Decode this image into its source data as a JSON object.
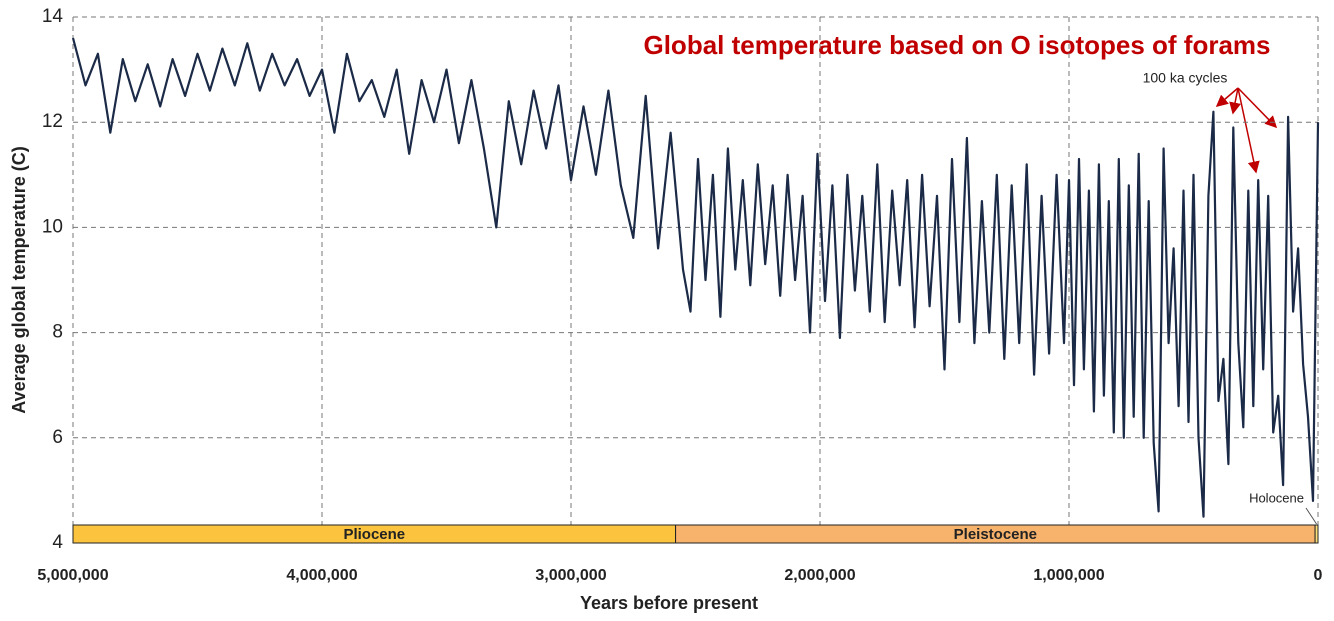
{
  "chart_data": {
    "type": "line",
    "title": "Global temperature based on O isotopes of forams",
    "x_label": "Years before present",
    "y_label": "Average global temperature (C)",
    "annotation": "100 ka cycles",
    "xlim": [
      5000000,
      0
    ],
    "ylim": [
      4,
      14
    ],
    "xticks": [
      {
        "value": 5000000,
        "label": "5,000,000"
      },
      {
        "value": 4000000,
        "label": "4,000,000"
      },
      {
        "value": 3000000,
        "label": "3,000,000"
      },
      {
        "value": 2000000,
        "label": "2,000,000"
      },
      {
        "value": 1000000,
        "label": "1,000,000"
      },
      0
    ],
    "yticks": [
      4,
      6,
      8,
      10,
      12,
      14
    ],
    "grid": true,
    "epochs": [
      {
        "name": "Pliocene",
        "start": 5000000,
        "end": 2580000,
        "color": "#fcc43e"
      },
      {
        "name": "Pleistocene",
        "start": 2580000,
        "end": 11700,
        "color": "#f7b26c"
      },
      {
        "name": "Holocene",
        "start": 11700,
        "end": 0,
        "color": "#fde07c"
      }
    ],
    "x": [
      5000000,
      4950000,
      4900000,
      4850000,
      4800000,
      4750000,
      4700000,
      4650000,
      4600000,
      4550000,
      4500000,
      4450000,
      4400000,
      4350000,
      4300000,
      4250000,
      4200000,
      4150000,
      4100000,
      4050000,
      4000000,
      3950000,
      3900000,
      3850000,
      3800000,
      3750000,
      3700000,
      3650000,
      3600000,
      3550000,
      3500000,
      3450000,
      3400000,
      3350000,
      3300000,
      3250000,
      3200000,
      3150000,
      3100000,
      3050000,
      3000000,
      2950000,
      2900000,
      2850000,
      2800000,
      2750000,
      2700000,
      2650000,
      2600000,
      2550000,
      2520000,
      2490000,
      2460000,
      2430000,
      2400000,
      2370000,
      2340000,
      2310000,
      2280000,
      2250000,
      2220000,
      2190000,
      2160000,
      2130000,
      2100000,
      2070000,
      2040000,
      2010000,
      1980000,
      1950000,
      1920000,
      1890000,
      1860000,
      1830000,
      1800000,
      1770000,
      1740000,
      1710000,
      1680000,
      1650000,
      1620000,
      1590000,
      1560000,
      1530000,
      1500000,
      1470000,
      1440000,
      1410000,
      1380000,
      1350000,
      1320000,
      1290000,
      1260000,
      1230000,
      1200000,
      1170000,
      1140000,
      1110000,
      1080000,
      1050000,
      1020000,
      1000000,
      980000,
      960000,
      940000,
      920000,
      900000,
      880000,
      860000,
      840000,
      820000,
      800000,
      780000,
      760000,
      740000,
      720000,
      700000,
      680000,
      660000,
      640000,
      620000,
      600000,
      580000,
      560000,
      540000,
      520000,
      500000,
      480000,
      460000,
      440000,
      420000,
      400000,
      380000,
      360000,
      340000,
      320000,
      300000,
      280000,
      260000,
      240000,
      220000,
      200000,
      180000,
      160000,
      140000,
      120000,
      100000,
      80000,
      60000,
      40000,
      20000,
      0
    ],
    "series": [
      {
        "color": "#1b2a47",
        "values": [
          13.6,
          12.7,
          13.3,
          11.8,
          13.2,
          12.4,
          13.1,
          12.3,
          13.2,
          12.5,
          13.3,
          12.6,
          13.4,
          12.7,
          13.5,
          12.6,
          13.3,
          12.7,
          13.2,
          12.5,
          13.0,
          11.8,
          13.3,
          12.4,
          12.8,
          12.1,
          13.0,
          11.4,
          12.8,
          12.0,
          13.0,
          11.6,
          12.8,
          11.5,
          10.0,
          12.4,
          11.2,
          12.6,
          11.5,
          12.7,
          10.9,
          12.3,
          11.0,
          12.6,
          10.8,
          9.8,
          12.5,
          9.6,
          11.8,
          9.2,
          8.4,
          11.3,
          9.0,
          11.0,
          8.3,
          11.5,
          9.2,
          10.9,
          8.9,
          11.2,
          9.3,
          10.8,
          8.7,
          11.0,
          9.0,
          10.6,
          8.0,
          11.4,
          8.6,
          10.8,
          7.9,
          11.0,
          8.8,
          10.6,
          8.4,
          11.2,
          8.2,
          10.7,
          8.9,
          10.9,
          8.1,
          11.0,
          8.5,
          10.6,
          7.3,
          11.3,
          8.2,
          11.7,
          7.8,
          10.5,
          8.0,
          11.0,
          7.5,
          10.8,
          7.8,
          11.2,
          7.2,
          10.6,
          7.6,
          11.0,
          7.8,
          10.9,
          7.0,
          11.3,
          7.3,
          10.7,
          6.5,
          11.2,
          6.8,
          10.5,
          6.1,
          11.3,
          6.0,
          10.8,
          6.4,
          11.4,
          6.0,
          10.5,
          5.9,
          4.6,
          11.5,
          7.8,
          9.6,
          6.6,
          10.7,
          6.3,
          11.0,
          6.0,
          4.5,
          10.6,
          12.2,
          6.7,
          7.5,
          5.5,
          11.9,
          7.8,
          6.2,
          10.7,
          6.6,
          10.9,
          7.3,
          10.6,
          6.1,
          6.8,
          5.1,
          12.1,
          8.4,
          9.6,
          7.4,
          6.4,
          4.8,
          12.0
        ]
      }
    ]
  }
}
